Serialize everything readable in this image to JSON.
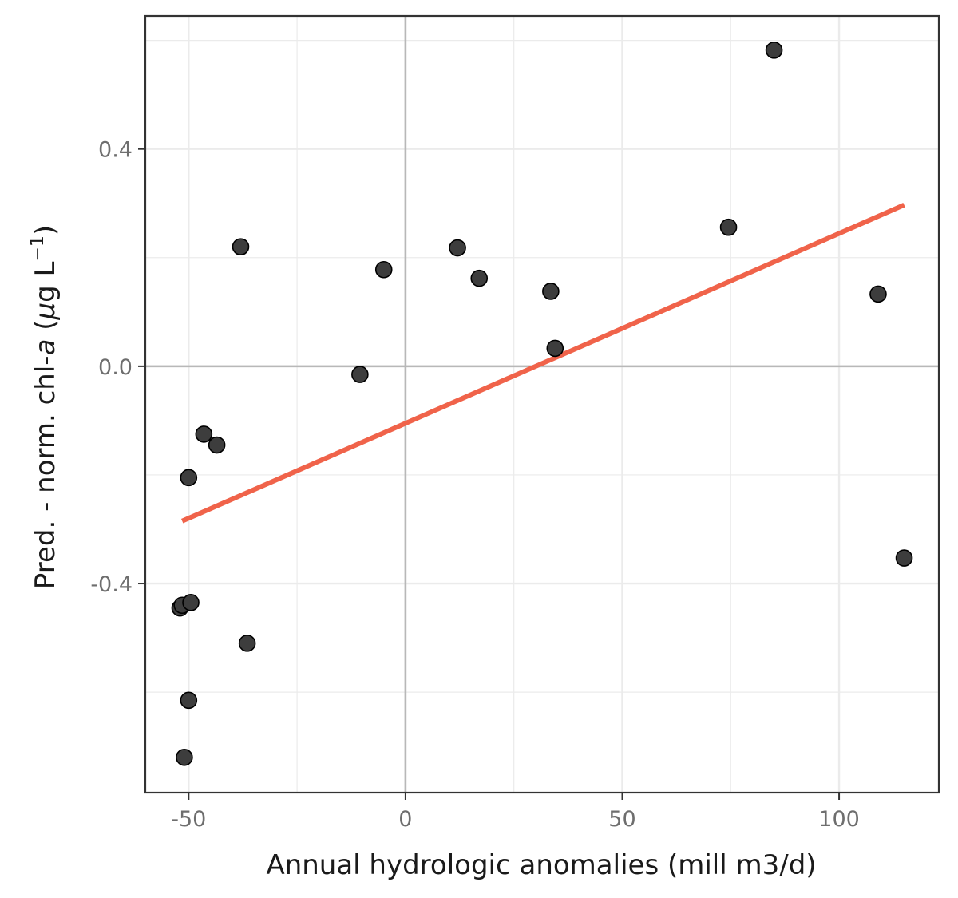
{
  "chart_data": {
    "type": "scatter",
    "xlabel": "Annual hydrologic anomalies (mill m3/d)",
    "ylabel": {
      "prefix": "Pred. - norm. chl-",
      "italic": "a",
      "open": " (",
      "mu": "μ",
      "unit": "g L",
      "superscript": "−1",
      "close": ")"
    },
    "xlim": [
      -60,
      123
    ],
    "ylim": [
      -0.785,
      0.645
    ],
    "x_ticks": [
      -50,
      0,
      50,
      100
    ],
    "x_tick_labels": [
      "-50",
      "0",
      "50",
      "100"
    ],
    "y_ticks": [
      -0.4,
      0.0,
      0.4
    ],
    "y_tick_labels": [
      "-0.4",
      "0.0",
      "0.4"
    ],
    "x_minor_ticks": [
      -25,
      25,
      75
    ],
    "y_minor_ticks": [
      -0.6,
      -0.2,
      0.2,
      0.6
    ],
    "grid": true,
    "reference_lines": {
      "x": 0,
      "y": 0
    },
    "points": [
      {
        "x": -52,
        "y": -0.445
      },
      {
        "x": -51.5,
        "y": -0.44
      },
      {
        "x": -49.5,
        "y": -0.435
      },
      {
        "x": -51,
        "y": -0.72
      },
      {
        "x": -50,
        "y": -0.615
      },
      {
        "x": -50,
        "y": -0.205
      },
      {
        "x": -46.5,
        "y": -0.125
      },
      {
        "x": -43.5,
        "y": -0.145
      },
      {
        "x": -38,
        "y": 0.22
      },
      {
        "x": -36.5,
        "y": -0.51
      },
      {
        "x": -10.5,
        "y": -0.015
      },
      {
        "x": -5,
        "y": 0.178
      },
      {
        "x": 12,
        "y": 0.218
      },
      {
        "x": 17,
        "y": 0.162
      },
      {
        "x": 33.5,
        "y": 0.138
      },
      {
        "x": 34.5,
        "y": 0.033
      },
      {
        "x": 74.5,
        "y": 0.256
      },
      {
        "x": 85,
        "y": 0.582
      },
      {
        "x": 109,
        "y": 0.133
      },
      {
        "x": 115,
        "y": -0.353
      }
    ],
    "trend_line": {
      "x": [
        -51.5,
        115
      ],
      "y": [
        -0.285,
        0.297
      ]
    },
    "colors": {
      "point_fill": "#3d3d3d",
      "point_stroke": "#000000",
      "trend": "#f0634a",
      "grid": "#ebebeb",
      "reference": "#b8b8b8",
      "panel_border": "#333333"
    }
  }
}
